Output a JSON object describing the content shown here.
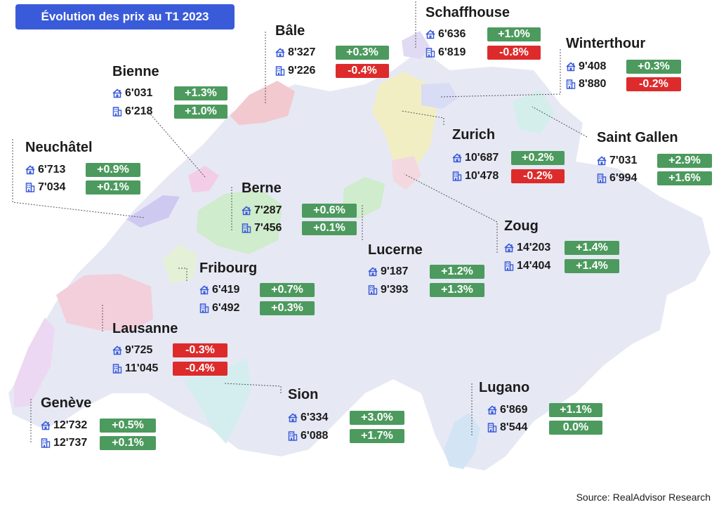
{
  "header": {
    "title": "Évolution des prix au T1 2023"
  },
  "footer": {
    "source": "Source: RealAdvisor Research"
  },
  "colors": {
    "positive": "#4c9a5e",
    "negative": "#dd2b2b",
    "title_bg": "#3a5bd9",
    "icon": "#3a5bd9",
    "map_base": "#e6e8f4"
  },
  "icons": {
    "house": "house-icon",
    "apartment": "apartment-building-icon"
  },
  "cities": [
    {
      "name": "Bâle",
      "house": {
        "price": "8'327",
        "change": "+0.3%"
      },
      "apartment": {
        "price": "9'226",
        "change": "-0.4%"
      }
    },
    {
      "name": "Schaffhouse",
      "house": {
        "price": "6'636",
        "change": "+1.0%"
      },
      "apartment": {
        "price": "6'819",
        "change": "-0.8%"
      }
    },
    {
      "name": "Winterthour",
      "house": {
        "price": "9'408",
        "change": "+0.3%"
      },
      "apartment": {
        "price": "8'880",
        "change": "-0.2%"
      }
    },
    {
      "name": "Bienne",
      "house": {
        "price": "6'031",
        "change": "+1.3%"
      },
      "apartment": {
        "price": "6'218",
        "change": "+1.0%"
      }
    },
    {
      "name": "Zurich",
      "house": {
        "price": "10'687",
        "change": "+0.2%"
      },
      "apartment": {
        "price": "10'478",
        "change": "-0.2%"
      }
    },
    {
      "name": "Saint Gallen",
      "house": {
        "price": "7'031",
        "change": "+2.9%"
      },
      "apartment": {
        "price": "6'994",
        "change": "+1.6%"
      }
    },
    {
      "name": "Neuchâtel",
      "house": {
        "price": "6'713",
        "change": "+0.9%"
      },
      "apartment": {
        "price": "7'034",
        "change": "+0.1%"
      }
    },
    {
      "name": "Berne",
      "house": {
        "price": "7'287",
        "change": "+0.6%"
      },
      "apartment": {
        "price": "7'456",
        "change": "+0.1%"
      }
    },
    {
      "name": "Zoug",
      "house": {
        "price": "14'203",
        "change": "+1.4%"
      },
      "apartment": {
        "price": "14'404",
        "change": "+1.4%"
      }
    },
    {
      "name": "Lucerne",
      "house": {
        "price": "9'187",
        "change": "+1.2%"
      },
      "apartment": {
        "price": "9'393",
        "change": "+1.3%"
      }
    },
    {
      "name": "Fribourg",
      "house": {
        "price": "6'419",
        "change": "+0.7%"
      },
      "apartment": {
        "price": "6'492",
        "change": "+0.3%"
      }
    },
    {
      "name": "Lausanne",
      "house": {
        "price": "9'725",
        "change": "-0.3%"
      },
      "apartment": {
        "price": "11'045",
        "change": "-0.4%"
      }
    },
    {
      "name": "Sion",
      "house": {
        "price": "6'334",
        "change": "+3.0%"
      },
      "apartment": {
        "price": "6'088",
        "change": "+1.7%"
      }
    },
    {
      "name": "Lugano",
      "house": {
        "price": "6'869",
        "change": "+1.1%"
      },
      "apartment": {
        "price": "8'544",
        "change": "0.0%"
      }
    },
    {
      "name": "Genève",
      "house": {
        "price": "12'732",
        "change": "+0.5%"
      },
      "apartment": {
        "price": "12'737",
        "change": "+0.1%"
      }
    }
  ]
}
